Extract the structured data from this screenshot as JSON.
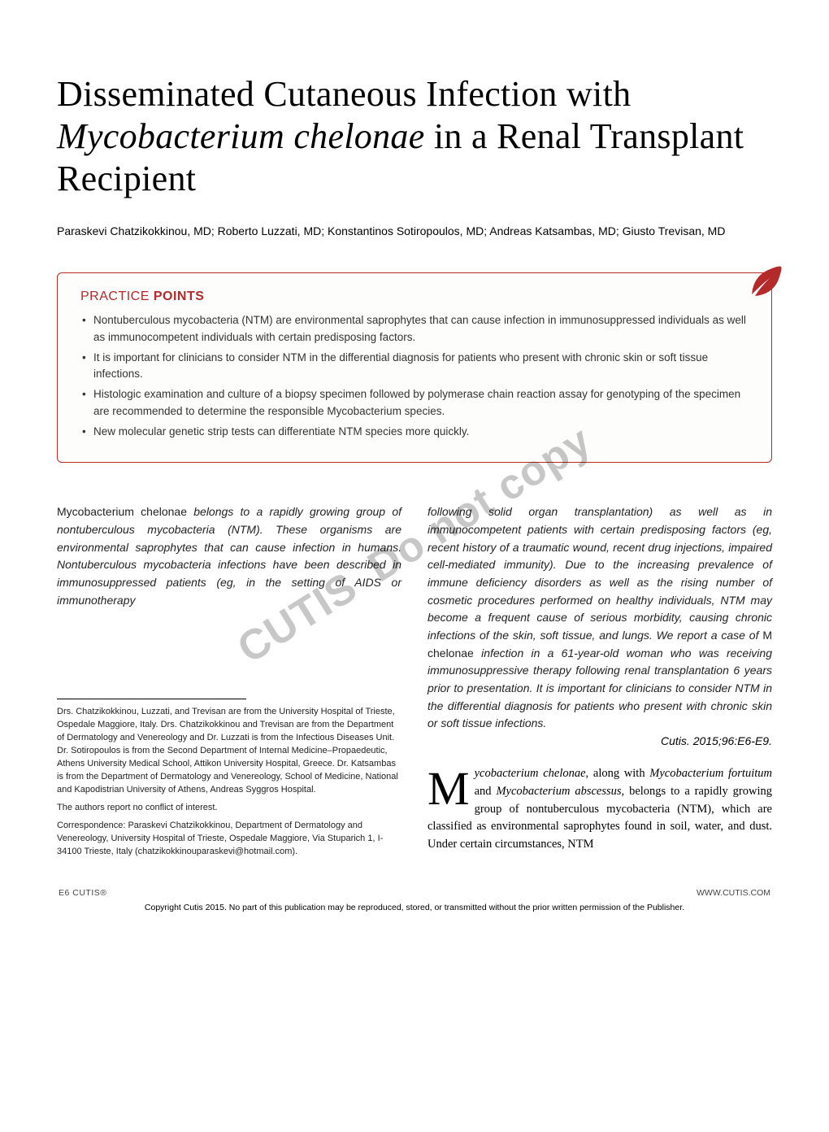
{
  "title_html": "Disseminated Cutaneous Infection with <em>Mycobacterium chelonae</em> in a Renal Transplant Recipient",
  "authors": "Paraskevi Chatzikokkinou, MD; Roberto Luzzati, MD; Konstantinos Sotiropoulos, MD; Andreas Katsambas, MD; Giusto Trevisan, MD",
  "practice": {
    "heading_light": "PRACTICE ",
    "heading_bold": "POINTS",
    "accent_color": "#b4292a",
    "items": [
      "Nontuberculous mycobacteria (NTM) are environmental saprophytes that can cause infection in immunosuppressed individuals as well as immunocompetent individuals with certain predisposing factors.",
      "It is important for clinicians to consider NTM in the differential diagnosis for patients who present with chronic skin or soft tissue infections.",
      "Histologic examination and culture of a biopsy specimen followed by polymerase chain reaction assay for genotyping of the specimen are recommended to determine the responsible Mycobacterium species.",
      "New molecular genetic strip tests can differentiate NTM species more quickly."
    ]
  },
  "watermark": "Do not copy",
  "abstract_left_html": "<span class='upright'>Mycobacterium chelonae</span> belongs to a rapidly growing group of nontuberculous mycobacteria (NTM). These organisms are environmental saprophytes that can cause infection in humans. Nontuberculous mycobacteria infections have been described in immunosuppressed patients (eg, in the setting of AIDS or immunotherapy",
  "abstract_right_html": "following solid organ transplantation) as well as in immunocompetent patients with certain predisposing factors (eg, recent history of a traumatic wound, recent drug injections, impaired cell-mediated immunity). Due to the increasing prevalence of immune deficiency disorders as well as the rising number of cosmetic procedures performed on healthy individuals, NTM may become a frequent cause of serious morbidity, causing chronic infections of the skin, soft tissue, and lungs. We report a case of <span class='upright'>M chelonae</span> infection in a 61-year-old woman who was receiving immunosuppressive therapy following renal transplantation 6 years prior to presentation. It is important for clinicians to consider NTM in the differential diagnosis for patients who present with chronic skin or soft tissue infections.",
  "citation": "Cutis. 2015;96:E6-E9.",
  "affiliations": {
    "p1": "Drs. Chatzikokkinou, Luzzati, and Trevisan are from the University Hospital of Trieste, Ospedale Maggiore, Italy. Drs. Chatzikokkinou and Trevisan are from the Department of Dermatology and Venereology and Dr. Luzzati is from the Infectious Diseases Unit. Dr. Sotiropoulos is from the Second Department of Internal Medicine–Propaedeutic, Athens University Medical School, Attikon University Hospital, Greece. Dr. Katsambas is from the Department of Dermatology and Venereology, School of Medicine, National and Kapodistrian University of Athens, Andreas Syggros Hospital.",
    "p2": "The authors report no conflict of interest.",
    "p3": "Correspondence: Paraskevi Chatzikokkinou, Department of Dermatology and Venereology, University Hospital of Trieste, Ospedale Maggiore, Via Stuparich 1, I-34100 Trieste, Italy (chatzikokkinouparaskevi@hotmail.com)."
  },
  "body_html": "<span class='dropcap'>M</span><em>ycobacterium chelonae</em>, along with <em>Mycobacterium fortuitum</em> and <em>Mycobacterium abscessus</em>, belongs to a rapidly growing group of nontuberculous mycobacteria (NTM), which are classified as environmental saprophytes found in soil, water, and dust. Under certain circumstances, NTM",
  "footer": {
    "left": "E6  CUTIS®",
    "right": "WWW.CUTIS.COM"
  },
  "copyright": "Copyright Cutis 2015. No part of this publication may be reproduced, stored, or transmitted without the prior written permission of the Publisher.",
  "leaf_color": "#b4292a",
  "watermark_cutis": "CUTIS"
}
